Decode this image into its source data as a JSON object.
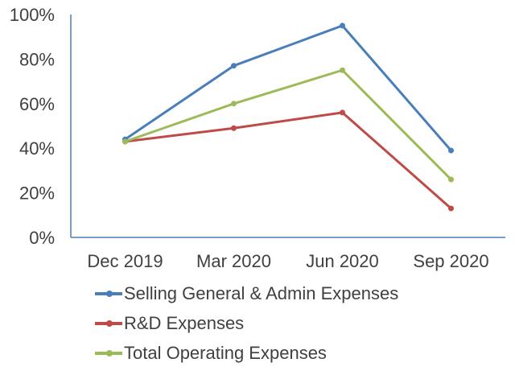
{
  "chart_data": {
    "type": "line",
    "title": "",
    "xlabel": "",
    "ylabel": "",
    "categories": [
      "Dec 2019",
      "Mar 2020",
      "Jun 2020",
      "Sep 2020"
    ],
    "y_ticks": [
      "0%",
      "20%",
      "40%",
      "60%",
      "80%",
      "100%"
    ],
    "ylim": [
      0,
      100
    ],
    "grid": false,
    "legend_position": "bottom",
    "series": [
      {
        "name": "Selling General & Admin Expenses",
        "color": "#4a7ebb",
        "values": [
          44,
          77,
          95,
          39
        ]
      },
      {
        "name": "R&D Expenses",
        "color": "#be4b48",
        "values": [
          43,
          49,
          56,
          13
        ]
      },
      {
        "name": "Total Operating Expenses",
        "color": "#9bbb59",
        "values": [
          43,
          60,
          75,
          26
        ]
      }
    ]
  }
}
